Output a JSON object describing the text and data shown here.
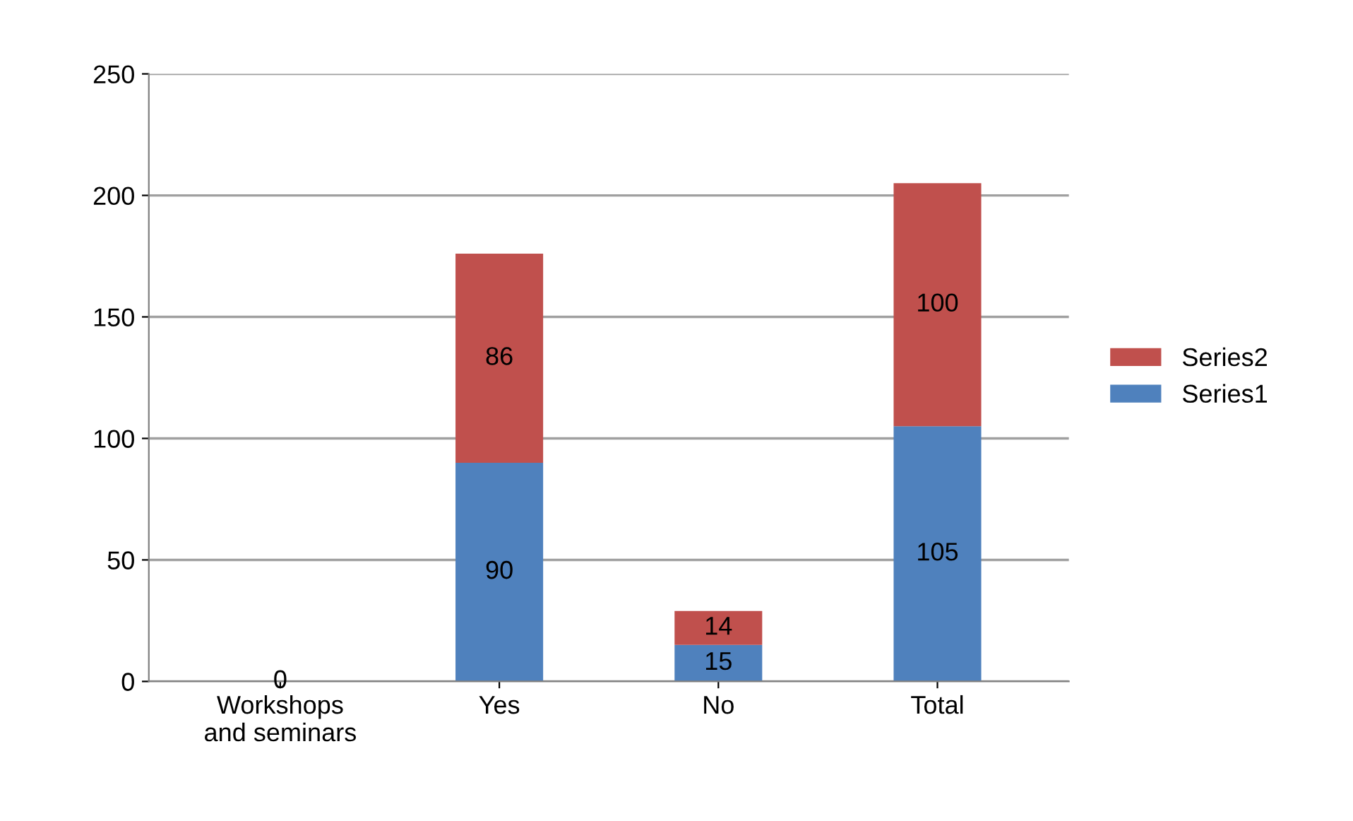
{
  "chart_data": {
    "type": "bar",
    "stacked": true,
    "categories": [
      "Workshops\nand seminars",
      "Yes",
      "No",
      "Total"
    ],
    "series": [
      {
        "name": "Series1",
        "color": "#4f81bd",
        "values": [
          0,
          90,
          15,
          105
        ],
        "value_labels": [
          "0",
          "90",
          "15",
          "105"
        ]
      },
      {
        "name": "Series2",
        "color": "#c0504d",
        "values": [
          0,
          86,
          14,
          100
        ],
        "value_labels": [
          null,
          "86",
          "14",
          "100"
        ]
      }
    ],
    "ylim": [
      0,
      250
    ],
    "yticks": [
      0,
      50,
      100,
      150,
      200,
      250
    ],
    "grid": "y",
    "legend": "right"
  }
}
